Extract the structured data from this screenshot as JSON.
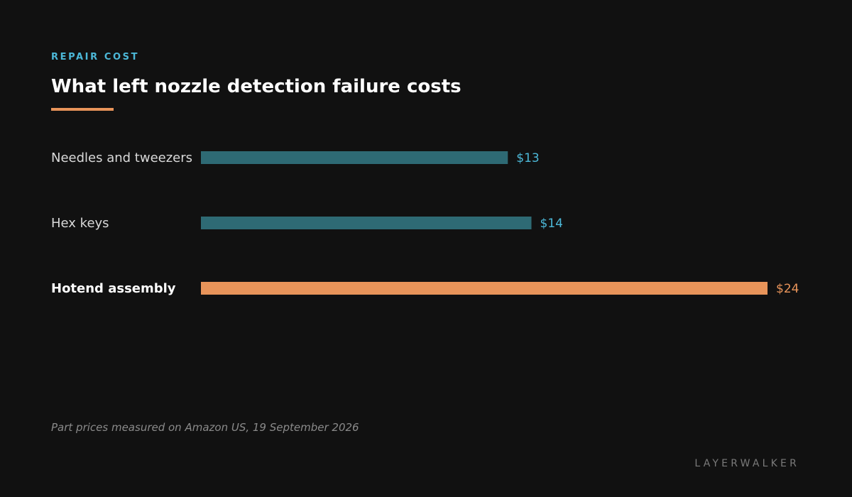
{
  "eyebrow": "REPAIR COST",
  "title": "What left nozzle detection failure costs",
  "footnote": "Part prices measured on Amazon US, 19 September 2026",
  "brand": "LAYERWALKER",
  "colors": {
    "accent": "#e8945a",
    "bar_default": "#2e6a74",
    "value_default": "#4cb8d8",
    "label_default": "#d9d9d9",
    "label_highlight": "#ffffff",
    "eyebrow": "#4cb8d8"
  },
  "chart_data": {
    "type": "bar",
    "orientation": "horizontal",
    "title": "What left nozzle detection failure costs",
    "categories": [
      "Needles and tweezers",
      "Hex keys",
      "Hotend assembly"
    ],
    "values": [
      13,
      14,
      24
    ],
    "value_labels": [
      "$13",
      "$14",
      "$24"
    ],
    "highlight": [
      false,
      false,
      true
    ],
    "xlim": [
      0,
      24
    ],
    "grid": false,
    "legend": "none"
  }
}
